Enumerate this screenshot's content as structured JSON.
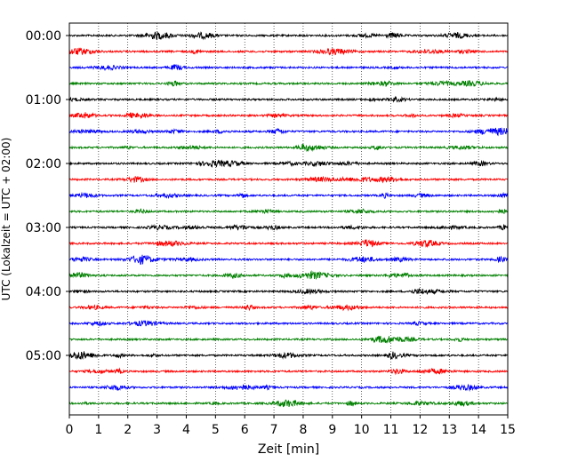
{
  "chart_data": {
    "type": "line",
    "title": "",
    "xlabel": "Zeit  [min]",
    "ylabel": "UTC (Lokalzeit = UTC + 02:00)",
    "xlim": [
      0,
      15
    ],
    "x_ticks": [
      "0",
      "1",
      "2",
      "3",
      "4",
      "5",
      "6",
      "7",
      "8",
      "9",
      "10",
      "11",
      "12",
      "13",
      "14",
      "15"
    ],
    "y_tick_labels": [
      "00:00",
      "01:00",
      "02:00",
      "03:00",
      "04:00",
      "05:00"
    ],
    "grid": "vertical-dotted",
    "series_colors": [
      "#000000",
      "#ff0000",
      "#0000ff",
      "#008000"
    ],
    "traces": [
      {
        "start": "00:00",
        "color": "#000000"
      },
      {
        "start": "00:15",
        "color": "#ff0000"
      },
      {
        "start": "00:30",
        "color": "#0000ff"
      },
      {
        "start": "00:45",
        "color": "#008000"
      },
      {
        "start": "01:00",
        "color": "#000000"
      },
      {
        "start": "01:15",
        "color": "#ff0000"
      },
      {
        "start": "01:30",
        "color": "#0000ff"
      },
      {
        "start": "01:45",
        "color": "#008000"
      },
      {
        "start": "02:00",
        "color": "#000000"
      },
      {
        "start": "02:15",
        "color": "#ff0000"
      },
      {
        "start": "02:30",
        "color": "#0000ff"
      },
      {
        "start": "02:45",
        "color": "#008000"
      },
      {
        "start": "03:00",
        "color": "#000000"
      },
      {
        "start": "03:15",
        "color": "#ff0000"
      },
      {
        "start": "03:30",
        "color": "#0000ff"
      },
      {
        "start": "03:45",
        "color": "#008000"
      },
      {
        "start": "04:00",
        "color": "#000000"
      },
      {
        "start": "04:15",
        "color": "#ff0000"
      },
      {
        "start": "04:30",
        "color": "#0000ff"
      },
      {
        "start": "04:45",
        "color": "#008000"
      },
      {
        "start": "05:00",
        "color": "#000000"
      },
      {
        "start": "05:15",
        "color": "#ff0000"
      },
      {
        "start": "05:30",
        "color": "#0000ff"
      },
      {
        "start": "05:45",
        "color": "#008000"
      }
    ]
  }
}
